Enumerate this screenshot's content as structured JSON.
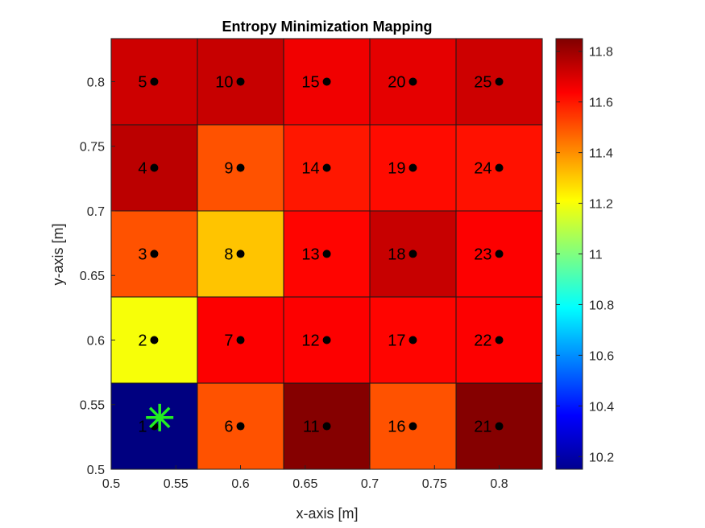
{
  "chart_data": {
    "type": "heatmap",
    "title": "Entropy Minimization Mapping",
    "xlabel": "x-axis [m]",
    "ylabel": "y-axis [m]",
    "xlim": [
      0.5,
      0.8333
    ],
    "ylim": [
      0.5,
      0.8333
    ],
    "x_ticks": [
      "0.5",
      "0.55",
      "0.6",
      "0.65",
      "0.7",
      "0.75",
      "0.8"
    ],
    "y_ticks": [
      "0.5",
      "0.55",
      "0.6",
      "0.65",
      "0.7",
      "0.75",
      "0.8"
    ],
    "grid": false,
    "colormap": "jet",
    "colorbar": {
      "placement": "right",
      "range": [
        10.15,
        11.85
      ],
      "ticks": [
        "10.2",
        "10.4",
        "10.6",
        "10.8",
        "11",
        "11.2",
        "11.4",
        "11.6",
        "11.8"
      ]
    },
    "cells": [
      {
        "label": "1",
        "x": 0.5333,
        "y": 0.5333,
        "value": 10.15
      },
      {
        "label": "2",
        "x": 0.5333,
        "y": 0.6,
        "value": 11.2
      },
      {
        "label": "3",
        "x": 0.5333,
        "y": 0.6667,
        "value": 11.5
      },
      {
        "label": "4",
        "x": 0.5333,
        "y": 0.7333,
        "value": 11.75
      },
      {
        "label": "5",
        "x": 0.5333,
        "y": 0.8,
        "value": 11.72
      },
      {
        "label": "6",
        "x": 0.6,
        "y": 0.5333,
        "value": 11.5
      },
      {
        "label": "7",
        "x": 0.6,
        "y": 0.6,
        "value": 11.64
      },
      {
        "label": "8",
        "x": 0.6,
        "y": 0.6667,
        "value": 11.31
      },
      {
        "label": "9",
        "x": 0.6,
        "y": 0.7333,
        "value": 11.5
      },
      {
        "label": "10",
        "x": 0.6,
        "y": 0.8,
        "value": 11.73
      },
      {
        "label": "11",
        "x": 0.6667,
        "y": 0.5333,
        "value": 11.84
      },
      {
        "label": "12",
        "x": 0.6667,
        "y": 0.6,
        "value": 11.64
      },
      {
        "label": "13",
        "x": 0.6667,
        "y": 0.6667,
        "value": 11.63
      },
      {
        "label": "14",
        "x": 0.6667,
        "y": 0.7333,
        "value": 11.6
      },
      {
        "label": "15",
        "x": 0.6667,
        "y": 0.8,
        "value": 11.66
      },
      {
        "label": "16",
        "x": 0.7333,
        "y": 0.5333,
        "value": 11.5
      },
      {
        "label": "17",
        "x": 0.7333,
        "y": 0.6,
        "value": 11.63
      },
      {
        "label": "18",
        "x": 0.7333,
        "y": 0.6667,
        "value": 11.73
      },
      {
        "label": "19",
        "x": 0.7333,
        "y": 0.7333,
        "value": 11.62
      },
      {
        "label": "20",
        "x": 0.7333,
        "y": 0.8,
        "value": 11.68
      },
      {
        "label": "21",
        "x": 0.8,
        "y": 0.5333,
        "value": 11.84
      },
      {
        "label": "22",
        "x": 0.8,
        "y": 0.6,
        "value": 11.64
      },
      {
        "label": "23",
        "x": 0.8,
        "y": 0.6667,
        "value": 11.64
      },
      {
        "label": "24",
        "x": 0.8,
        "y": 0.7333,
        "value": 11.61
      },
      {
        "label": "25",
        "x": 0.8,
        "y": 0.8,
        "value": 11.72
      }
    ],
    "marker": {
      "shape": "asterisk",
      "x": 0.5375,
      "y": 0.54,
      "color": "#22ee22"
    },
    "point_color": "#000000"
  }
}
